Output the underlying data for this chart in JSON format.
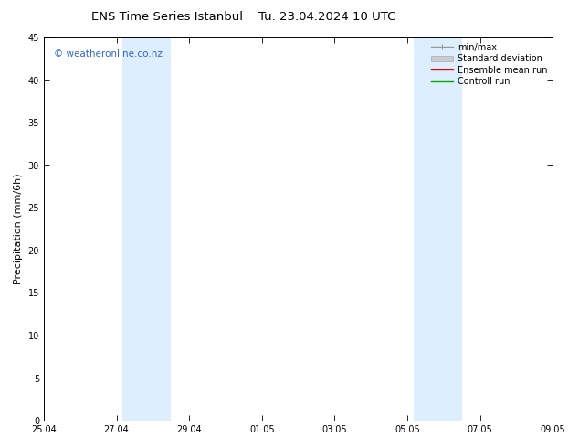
{
  "title_left": "ENS Time Series Istanbul",
  "title_right": "Tu. 23.04.2024 10 UTC",
  "ylabel": "Precipitation (mm/6h)",
  "ylim": [
    0,
    45
  ],
  "yticks": [
    0,
    5,
    10,
    15,
    20,
    25,
    30,
    35,
    40,
    45
  ],
  "xlim_start": 0,
  "xlim_end": 336,
  "xtick_positions": [
    0,
    48,
    96,
    144,
    192,
    240,
    288,
    336
  ],
  "xtick_labels": [
    "25.04",
    "27.04",
    "29.04",
    "01.05",
    "03.05",
    "05.05",
    "07.05",
    "09.05"
  ],
  "shaded_bands": [
    {
      "start": 52,
      "end": 84
    },
    {
      "start": 244,
      "end": 276
    }
  ],
  "shade_color": "#ddeeff",
  "bg_color": "#ffffff",
  "watermark_text": "© weatheronline.co.nz",
  "watermark_color": "#3366cc",
  "legend_entries": [
    {
      "label": "min/max",
      "color": "#999999",
      "lw": 1.0,
      "style": "solid"
    },
    {
      "label": "Standard deviation",
      "color": "#cccccc",
      "lw": 6,
      "style": "solid"
    },
    {
      "label": "Ensemble mean run",
      "color": "#ff0000",
      "lw": 1.0,
      "style": "solid"
    },
    {
      "label": "Controll run",
      "color": "#00aa00",
      "lw": 1.0,
      "style": "solid"
    }
  ],
  "title_fontsize": 9.5,
  "tick_fontsize": 7,
  "ylabel_fontsize": 8,
  "watermark_fontsize": 7.5,
  "legend_fontsize": 7
}
